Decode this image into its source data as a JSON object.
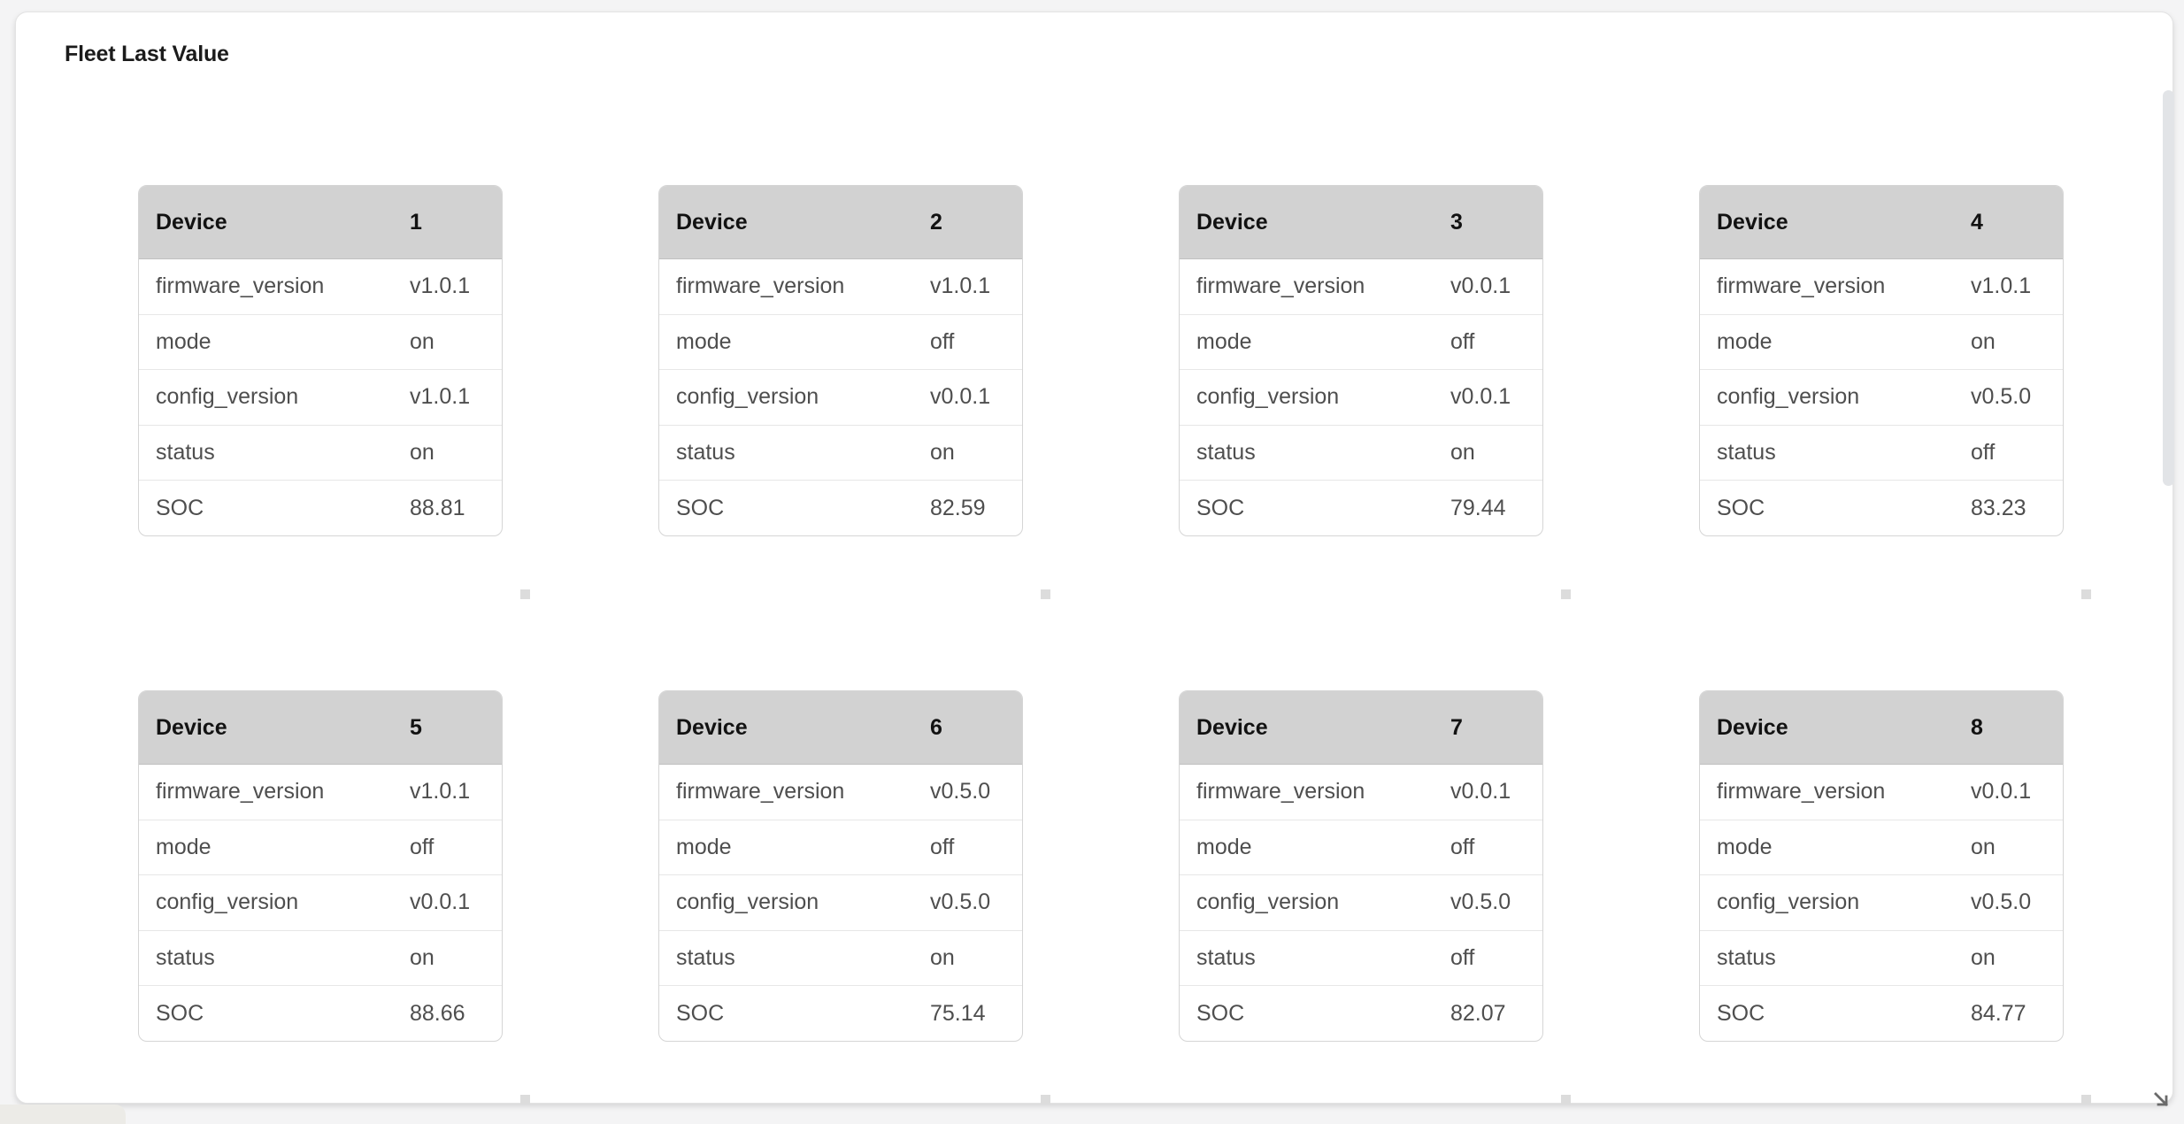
{
  "panel": {
    "title": "Fleet Last Value"
  },
  "table": {
    "header_label": "Device",
    "row_keys": [
      "firmware_version",
      "mode",
      "config_version",
      "status",
      "SOC"
    ]
  },
  "devices": [
    {
      "number": "1",
      "values": [
        "v1.0.1",
        "on",
        "v1.0.1",
        "on",
        "88.81"
      ]
    },
    {
      "number": "2",
      "values": [
        "v1.0.1",
        "off",
        "v0.0.1",
        "on",
        "82.59"
      ]
    },
    {
      "number": "3",
      "values": [
        "v0.0.1",
        "off",
        "v0.0.1",
        "on",
        "79.44"
      ]
    },
    {
      "number": "4",
      "values": [
        "v1.0.1",
        "on",
        "v0.5.0",
        "off",
        "83.23"
      ]
    },
    {
      "number": "5",
      "values": [
        "v1.0.1",
        "off",
        "v0.0.1",
        "on",
        "88.66"
      ]
    },
    {
      "number": "6",
      "values": [
        "v0.5.0",
        "off",
        "v0.5.0",
        "on",
        "75.14"
      ]
    },
    {
      "number": "7",
      "values": [
        "v0.0.1",
        "off",
        "v0.5.0",
        "off",
        "82.07"
      ]
    },
    {
      "number": "8",
      "values": [
        "v0.0.1",
        "on",
        "v0.5.0",
        "on",
        "84.77"
      ]
    }
  ],
  "colors": {
    "page_background": "#f4f4f5",
    "card_background": "#ffffff",
    "table_header_background": "#d2d2d2",
    "table_border": "#d5d5d5",
    "row_separator": "#e7e7e7",
    "body_text": "#4e4e4e",
    "header_text": "#121212",
    "handle_square": "#dcdcdc",
    "scrollbar_thumb": "#e2e4e7",
    "resize_corner_icon": "#6a6a6a"
  }
}
